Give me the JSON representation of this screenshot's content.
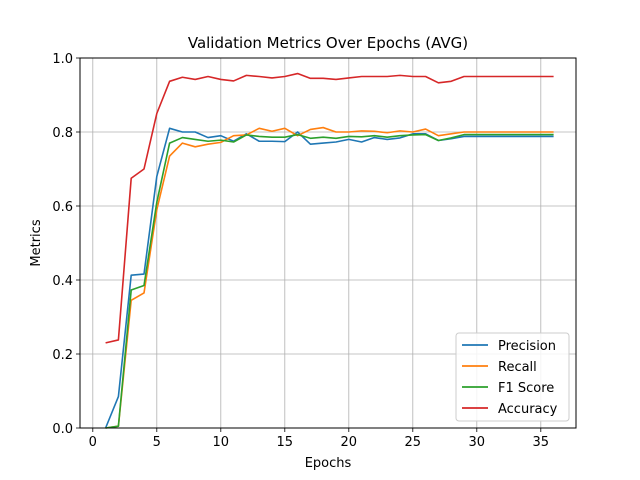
{
  "chart_data": {
    "type": "line",
    "title": "Validation Metrics Over Epochs (AVG)",
    "xlabel": "Epochs",
    "ylabel": "Metrics",
    "xlim": [
      -1,
      37.75
    ],
    "ylim": [
      0,
      1
    ],
    "x_ticks": [
      0,
      5,
      10,
      15,
      20,
      25,
      30,
      35
    ],
    "x_tick_labels": [
      "0",
      "5",
      "10",
      "15",
      "20",
      "25",
      "30",
      "35"
    ],
    "y_ticks": [
      0,
      0.2,
      0.4,
      0.6,
      0.8,
      1.0
    ],
    "y_tick_labels": [
      "0.0",
      "0.2",
      "0.4",
      "0.6",
      "0.8",
      "1.0"
    ],
    "grid": true,
    "legend_position": "lower-right",
    "x": [
      1,
      2,
      3,
      4,
      5,
      6,
      7,
      8,
      9,
      10,
      11,
      12,
      13,
      14,
      15,
      16,
      17,
      18,
      19,
      20,
      21,
      22,
      23,
      24,
      25,
      26,
      27,
      28,
      29,
      30,
      31,
      32,
      33,
      34,
      35,
      36
    ],
    "series": [
      {
        "name": "Precision",
        "color": "#1f77b4",
        "values": [
          0.0,
          0.085,
          0.413,
          0.416,
          0.68,
          0.81,
          0.8,
          0.8,
          0.785,
          0.79,
          0.775,
          0.795,
          0.775,
          0.775,
          0.774,
          0.8,
          0.767,
          0.77,
          0.773,
          0.78,
          0.773,
          0.785,
          0.78,
          0.784,
          0.795,
          0.795,
          0.777,
          0.782,
          0.788,
          0.788,
          0.788,
          0.788,
          0.788,
          0.788,
          0.788,
          0.788
        ]
      },
      {
        "name": "Recall",
        "color": "#ff7f0e",
        "values": [
          0.0,
          0.005,
          0.345,
          0.365,
          0.59,
          0.735,
          0.77,
          0.76,
          0.767,
          0.772,
          0.79,
          0.792,
          0.81,
          0.802,
          0.81,
          0.79,
          0.807,
          0.812,
          0.8,
          0.8,
          0.803,
          0.802,
          0.798,
          0.803,
          0.8,
          0.808,
          0.79,
          0.795,
          0.8,
          0.8,
          0.8,
          0.8,
          0.8,
          0.8,
          0.8,
          0.8
        ]
      },
      {
        "name": "F1 Score",
        "color": "#2ca02c",
        "values": [
          0.0,
          0.005,
          0.373,
          0.385,
          0.61,
          0.77,
          0.785,
          0.78,
          0.775,
          0.778,
          0.773,
          0.792,
          0.788,
          0.786,
          0.786,
          0.793,
          0.783,
          0.786,
          0.783,
          0.788,
          0.787,
          0.79,
          0.786,
          0.79,
          0.792,
          0.793,
          0.777,
          0.784,
          0.793,
          0.793,
          0.793,
          0.793,
          0.793,
          0.793,
          0.793,
          0.793
        ]
      },
      {
        "name": "Accuracy",
        "color": "#d62728",
        "values": [
          0.23,
          0.238,
          0.675,
          0.7,
          0.85,
          0.937,
          0.948,
          0.942,
          0.95,
          0.942,
          0.938,
          0.953,
          0.95,
          0.946,
          0.95,
          0.958,
          0.945,
          0.945,
          0.942,
          0.946,
          0.95,
          0.95,
          0.95,
          0.953,
          0.95,
          0.95,
          0.933,
          0.937,
          0.95,
          0.95,
          0.95,
          0.95,
          0.95,
          0.95,
          0.95,
          0.95
        ]
      }
    ]
  }
}
